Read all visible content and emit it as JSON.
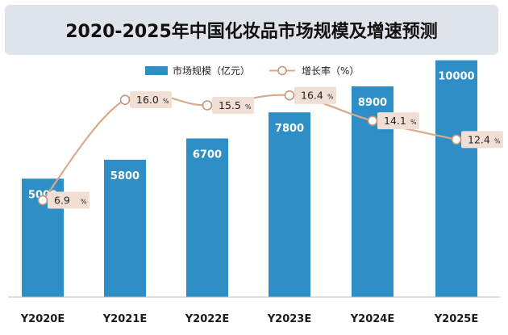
{
  "chart_data": {
    "type": "bar+line",
    "title": "2020-2025年中国化妆品市场规模及增速预测",
    "categories": [
      "Y2020E",
      "Y2021E",
      "Y2022E",
      "Y2023E",
      "Y2024E",
      "Y2025E"
    ],
    "series": [
      {
        "name": "市场规模（亿元）",
        "type": "bar",
        "values": [
          5000,
          5800,
          6700,
          7800,
          8900,
          10000
        ],
        "color": "#2e8fc7"
      },
      {
        "name": "增长率（%）",
        "type": "line",
        "values": [
          6.9,
          16.0,
          15.5,
          16.4,
          14.1,
          12.4
        ],
        "unit": "%",
        "color": "#d9a98c",
        "label_bg": "#f1dfd6"
      }
    ],
    "bar_ylim": [
      0,
      10500
    ],
    "line_ylim": [
      5,
      17
    ],
    "legend_position": "top-center",
    "grid": false
  }
}
